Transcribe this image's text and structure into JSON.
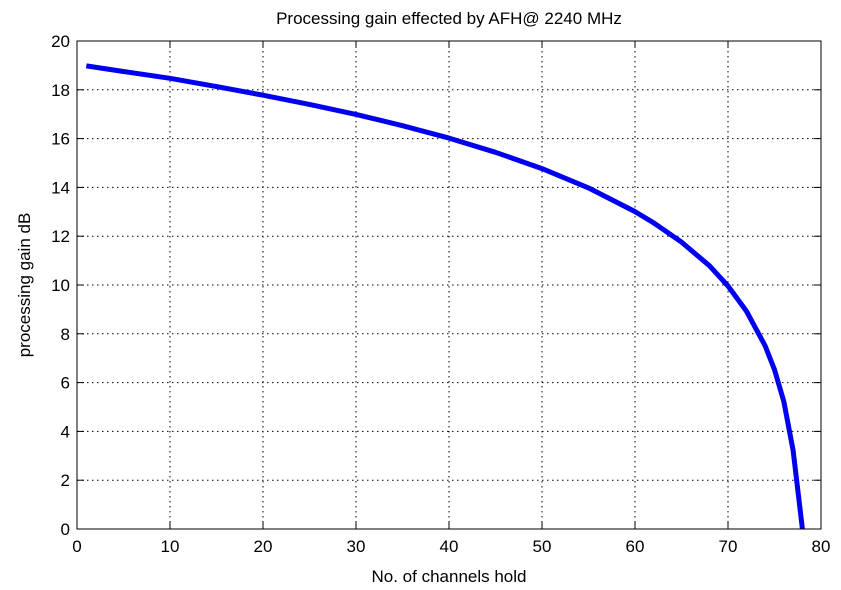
{
  "chart_data": {
    "type": "line",
    "title": "Processing gain effected by AFH@ 2240 MHz",
    "xlabel": "No. of channels hold",
    "ylabel": "processing gain dB",
    "xlim": [
      0,
      80
    ],
    "ylim": [
      0,
      20
    ],
    "xticks": [
      0,
      10,
      20,
      30,
      40,
      50,
      60,
      70,
      80
    ],
    "yticks": [
      0,
      2,
      4,
      6,
      8,
      10,
      12,
      14,
      16,
      18,
      20
    ],
    "grid": true,
    "series": [
      {
        "color": "#0000ee",
        "x": [
          1,
          5,
          10,
          15,
          20,
          25,
          30,
          35,
          40,
          45,
          50,
          55,
          60,
          62,
          65,
          68,
          70,
          72,
          74,
          75,
          76,
          77,
          77.5,
          78
        ],
        "y": [
          18.98,
          18.75,
          18.47,
          18.13,
          17.78,
          17.4,
          16.99,
          16.53,
          16.02,
          15.44,
          14.77,
          13.98,
          13.01,
          12.55,
          11.76,
          10.79,
          9.96,
          8.92,
          7.5,
          6.53,
          5.23,
          3.22,
          1.6,
          0
        ]
      }
    ]
  }
}
